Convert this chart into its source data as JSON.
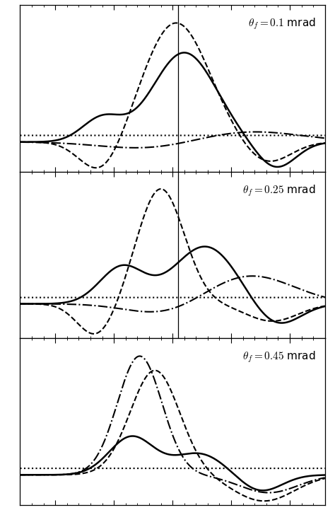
{
  "background": "#ffffff",
  "xlim": [
    -1.3,
    1.3
  ],
  "panels": [
    {
      "label": "$\\theta_f = 0.1$ mrad",
      "vline": 0.05
    },
    {
      "label": "$\\theta_f = 0.25$ mrad",
      "vline": 0.05
    },
    {
      "label": "$\\theta_f = 0.45$ mrad",
      "vline": null
    }
  ]
}
